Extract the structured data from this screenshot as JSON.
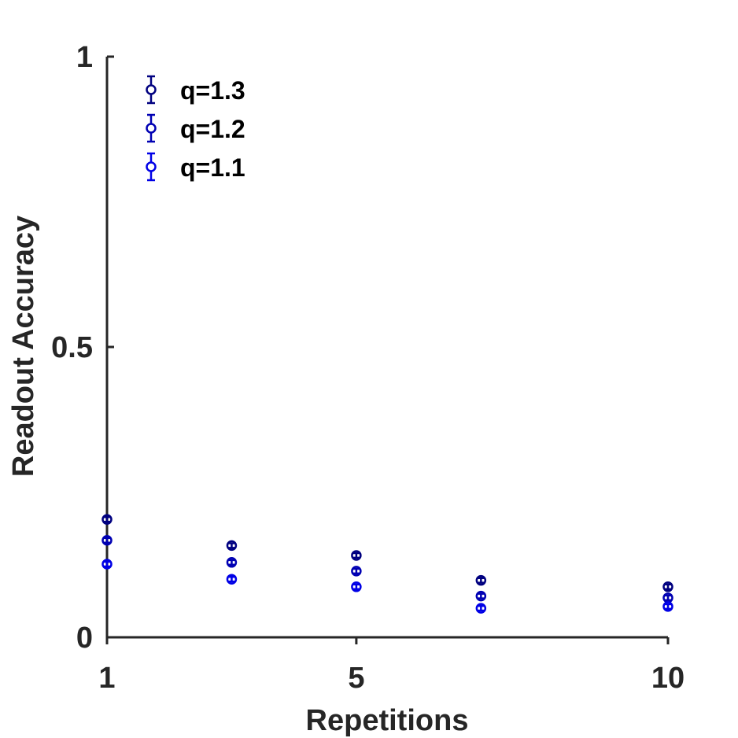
{
  "chart_data": {
    "type": "scatter",
    "title": "",
    "xlabel": "Repetitions",
    "ylabel": "Readout Accuracy",
    "xlim": [
      1,
      10
    ],
    "ylim": [
      0,
      1
    ],
    "xticks": [
      1,
      5,
      10
    ],
    "xtick_labels": [
      "1",
      "5",
      "10"
    ],
    "yticks": [
      0,
      0.5,
      1
    ],
    "ytick_labels": [
      "0",
      "0.5",
      "1"
    ],
    "grid": false,
    "legend_position": "top-left",
    "series": [
      {
        "name": "q=1.3",
        "color": "#000080",
        "x": [
          1,
          3,
          5,
          7,
          10
        ],
        "y": [
          0.203,
          0.158,
          0.141,
          0.098,
          0.087
        ],
        "error": [
          0.004,
          0.004,
          0.004,
          0.004,
          0.004
        ]
      },
      {
        "name": "q=1.2",
        "color": "#0000b3",
        "x": [
          1,
          3,
          5,
          7,
          10
        ],
        "y": [
          0.167,
          0.129,
          0.114,
          0.071,
          0.068
        ],
        "error": [
          0.004,
          0.004,
          0.004,
          0.004,
          0.004
        ]
      },
      {
        "name": "q=1.1",
        "color": "#0000e6",
        "x": [
          1,
          3,
          5,
          7,
          10
        ],
        "y": [
          0.126,
          0.1,
          0.087,
          0.05,
          0.053
        ],
        "error": [
          0.004,
          0.004,
          0.004,
          0.004,
          0.004
        ]
      }
    ]
  }
}
